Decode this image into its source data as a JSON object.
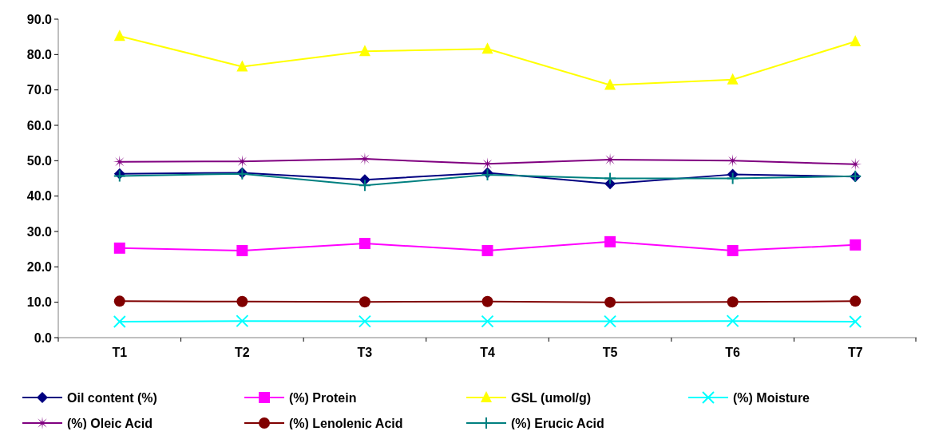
{
  "chart_data": {
    "type": "line",
    "categories": [
      "T1",
      "T2",
      "T3",
      "T4",
      "T5",
      "T6",
      "T7"
    ],
    "ylim": [
      0,
      90
    ],
    "yticks": [
      {
        "value": 0,
        "label": "0.0"
      },
      {
        "value": 10,
        "label": "10.0"
      },
      {
        "value": 20,
        "label": "20.0"
      },
      {
        "value": 30,
        "label": "30.0"
      },
      {
        "value": 40,
        "label": "40.0"
      },
      {
        "value": 50,
        "label": "50.0"
      },
      {
        "value": 60,
        "label": "60.0"
      },
      {
        "value": 70,
        "label": "70.0"
      },
      {
        "value": 80,
        "label": "80.0"
      },
      {
        "value": 90,
        "label": "90.0"
      }
    ],
    "grid": false,
    "legend": "bottom",
    "line_style": "solid",
    "series": [
      {
        "name": "Oil content (%)",
        "color": "#000080",
        "marker": "diamond",
        "values": [
          46.3,
          46.6,
          44.6,
          46.6,
          43.5,
          46.1,
          45.5
        ]
      },
      {
        "name": "(%) Protein",
        "color": "#ff00ff",
        "marker": "square",
        "values": [
          25.3,
          24.6,
          26.6,
          24.6,
          27.1,
          24.6,
          26.2
        ]
      },
      {
        "name": "GSL (umol/g)",
        "color": "#ffff00",
        "marker": "triangle",
        "values": [
          85.2,
          76.6,
          80.9,
          81.6,
          71.4,
          72.9,
          83.7
        ]
      },
      {
        "name": "(%) Moisture",
        "color": "#00ffff",
        "marker": "cross",
        "values": [
          4.5,
          4.7,
          4.6,
          4.6,
          4.6,
          4.7,
          4.5
        ]
      },
      {
        "name": "(%) Oleic Acid",
        "color": "#800080",
        "marker": "star",
        "values": [
          49.7,
          49.8,
          50.5,
          49.1,
          50.3,
          50.0,
          49.0
        ]
      },
      {
        "name": "(%) Lenolenic Acid",
        "color": "#800000",
        "marker": "circle",
        "values": [
          10.3,
          10.2,
          10.1,
          10.2,
          10.0,
          10.1,
          10.3
        ]
      },
      {
        "name": "(%) Erucic Acid",
        "color": "#008080",
        "marker": "plus",
        "values": [
          45.7,
          46.3,
          43.0,
          46.0,
          45.0,
          45.0,
          45.6
        ]
      }
    ]
  }
}
